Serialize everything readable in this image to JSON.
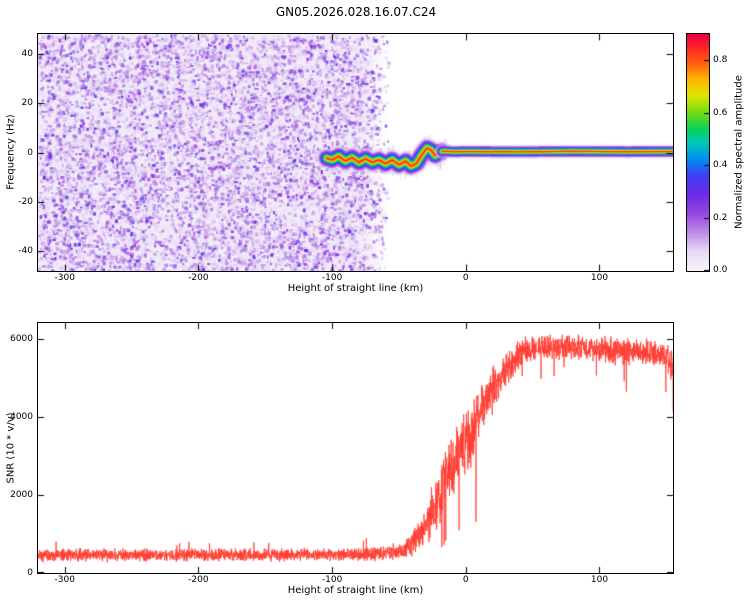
{
  "title": "GN05.2026.028.16.07.C24",
  "chart_data": [
    {
      "type": "heatmap",
      "name": "spectrogram",
      "xlabel": "Height of straight line (km)",
      "ylabel": "Frequency (Hz)",
      "xlim": [
        -320,
        155
      ],
      "ylim": [
        -48,
        48
      ],
      "x_ticks": [
        -300,
        -200,
        -100,
        0,
        100
      ],
      "x_tick_labels": [
        "-300",
        "-200",
        "-100",
        "0",
        "100"
      ],
      "y_ticks": [
        -40,
        -20,
        0,
        20,
        40
      ],
      "y_tick_labels": [
        "-40",
        "-20",
        "0",
        "20",
        "40"
      ],
      "grid": false,
      "colorbar": {
        "label": "Normalized spectral amplitude",
        "range": [
          0.0,
          0.9
        ],
        "ticks": [
          0.0,
          0.2,
          0.4,
          0.6,
          0.8
        ],
        "tick_labels": [
          "0.0",
          "0.2",
          "0.4",
          "0.6",
          "0.8"
        ]
      },
      "colormap_stops": [
        [
          0.0,
          248,
          244,
          252
        ],
        [
          0.08,
          232,
          218,
          246
        ],
        [
          0.16,
          190,
          140,
          230
        ],
        [
          0.24,
          150,
          72,
          222
        ],
        [
          0.32,
          110,
          42,
          232
        ],
        [
          0.4,
          62,
          62,
          240
        ],
        [
          0.47,
          0,
          142,
          240
        ],
        [
          0.54,
          0,
          200,
          185
        ],
        [
          0.6,
          10,
          210,
          85
        ],
        [
          0.67,
          115,
          220,
          20
        ],
        [
          0.74,
          222,
          230,
          0
        ],
        [
          0.81,
          255,
          180,
          0
        ],
        [
          0.88,
          255,
          92,
          20
        ],
        [
          0.95,
          255,
          32,
          40
        ],
        [
          1.0,
          235,
          0,
          70
        ]
      ],
      "noise_region": {
        "x_start": -320,
        "x_end": -62,
        "fade_start": -78,
        "value_min": 0.04,
        "value_max": 0.38
      },
      "signal_path": [
        [
          -106,
          -2
        ],
        [
          -100,
          -3
        ],
        [
          -95,
          -1.5
        ],
        [
          -90,
          -3.5
        ],
        [
          -85,
          -2
        ],
        [
          -80,
          -4
        ],
        [
          -75,
          -2.5
        ],
        [
          -70,
          -4
        ],
        [
          -65,
          -3
        ],
        [
          -60,
          -4.5
        ],
        [
          -55,
          -3
        ],
        [
          -50,
          -5
        ],
        [
          -45,
          -3.5
        ],
        [
          -41,
          -5.5
        ],
        [
          -37,
          -4.5
        ],
        [
          -33,
          -1
        ],
        [
          -29,
          1.8
        ],
        [
          -26,
          1
        ],
        [
          -23,
          -1.2
        ],
        [
          -20,
          0.2
        ],
        [
          -16,
          0.6
        ],
        [
          -10,
          0.3
        ],
        [
          0,
          0.4
        ],
        [
          40,
          0.3
        ],
        [
          80,
          0.45
        ],
        [
          120,
          0.35
        ],
        [
          155,
          0.4
        ]
      ],
      "signal_blob_end": -18
    },
    {
      "type": "line",
      "name": "snr",
      "xlabel": "Height of straight line (km)",
      "ylabel": "SNR (10 * v/v)",
      "xlim": [
        -320,
        155
      ],
      "ylim": [
        0,
        6400
      ],
      "x_ticks": [
        -300,
        -200,
        -100,
        0,
        100
      ],
      "x_tick_labels": [
        "-300",
        "-200",
        "-100",
        "0",
        "100"
      ],
      "y_ticks": [
        0,
        2000,
        4000,
        6000
      ],
      "y_tick_labels": [
        "0",
        "2000",
        "4000",
        "6000"
      ],
      "grid": false,
      "line_color": "#ff3b30",
      "mean_profile": [
        [
          -320,
          460
        ],
        [
          -150,
          460
        ],
        [
          -100,
          470
        ],
        [
          -70,
          490
        ],
        [
          -55,
          540
        ],
        [
          -45,
          620
        ],
        [
          -38,
          800
        ],
        [
          -32,
          1100
        ],
        [
          -27,
          1500
        ],
        [
          -22,
          1900
        ],
        [
          -17,
          2250
        ],
        [
          -12,
          2600
        ],
        [
          -7,
          2900
        ],
        [
          -2,
          3200
        ],
        [
          3,
          3500
        ],
        [
          8,
          3900
        ],
        [
          14,
          4300
        ],
        [
          20,
          4650
        ],
        [
          27,
          5000
        ],
        [
          35,
          5400
        ],
        [
          45,
          5700
        ],
        [
          55,
          5800
        ],
        [
          70,
          5780
        ],
        [
          85,
          5800
        ],
        [
          100,
          5720
        ],
        [
          110,
          5650
        ],
        [
          120,
          5700
        ],
        [
          135,
          5650
        ],
        [
          148,
          5550
        ],
        [
          155,
          5350
        ]
      ],
      "noise_amplitude": [
        [
          -320,
          190
        ],
        [
          -100,
          190
        ],
        [
          -60,
          230
        ],
        [
          -45,
          300
        ],
        [
          -35,
          450
        ],
        [
          -28,
          650
        ],
        [
          -22,
          800
        ],
        [
          -15,
          900
        ],
        [
          -8,
          950
        ],
        [
          0,
          950
        ],
        [
          6,
          900
        ],
        [
          12,
          820
        ],
        [
          18,
          700
        ],
        [
          25,
          600
        ],
        [
          32,
          500
        ],
        [
          40,
          420
        ],
        [
          50,
          380
        ],
        [
          70,
          360
        ],
        [
          100,
          380
        ],
        [
          115,
          450
        ],
        [
          130,
          380
        ],
        [
          148,
          420
        ],
        [
          155,
          600
        ]
      ],
      "spike_region": [
        -28,
        10
      ]
    }
  ]
}
